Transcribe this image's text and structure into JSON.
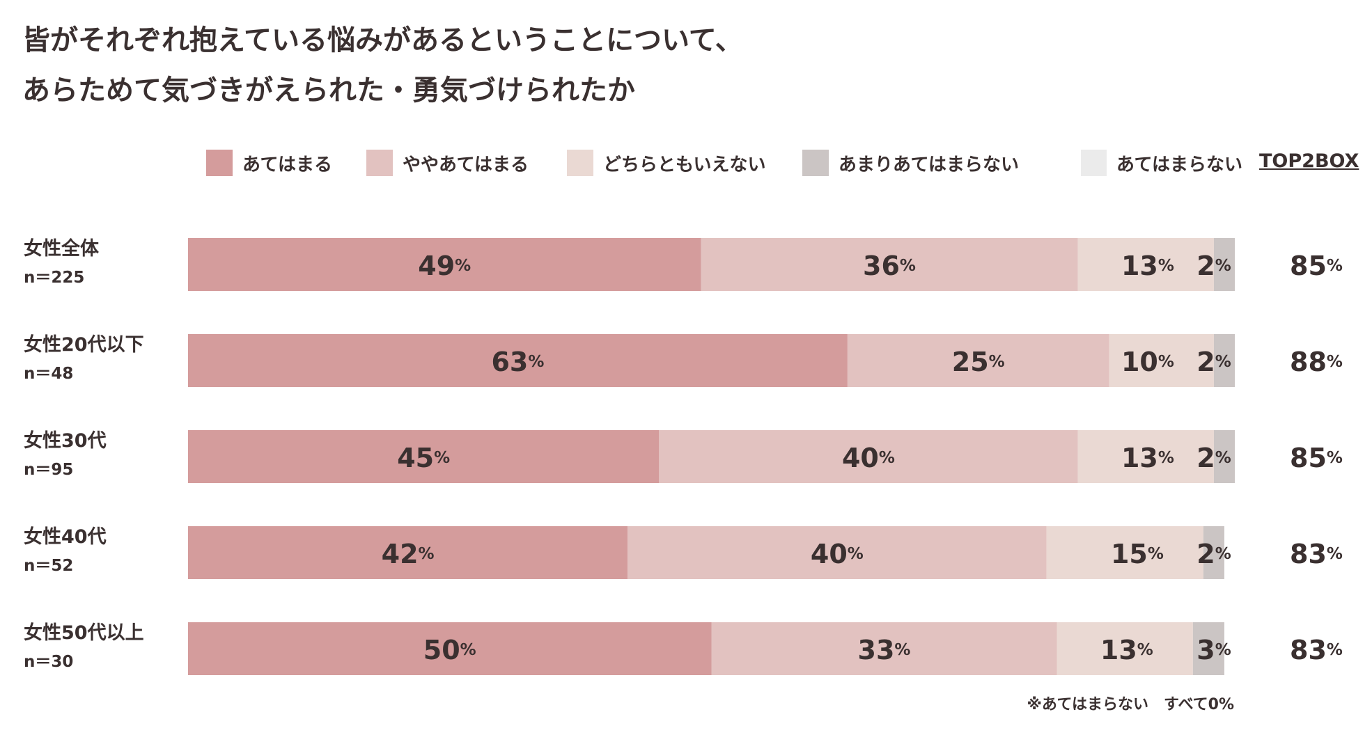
{
  "title": {
    "line1": "皆がそれぞれ抱えている悩みがあるということについて、",
    "line2": "あらためて気づきがえられた・勇気づけられたか"
  },
  "top2box_header": "TOP2BOX",
  "footnote": "※あてはまらない　すべて0%",
  "colors": {
    "あてはまる": "#d49c9c",
    "ややあてはまる": "#e2c2c0",
    "どちらともいえない": "#ead9d3",
    "あまりあてはまらない": "#cbc5c4",
    "あてはまらない": "#ebebeb",
    "text": "#3a3030"
  },
  "chart_data": {
    "type": "bar",
    "orientation": "horizontal",
    "stacked": true,
    "categories": [
      "女性全体",
      "女性20代以下",
      "女性30代",
      "女性40代",
      "女性50代以上"
    ],
    "sample_sizes": [
      "n＝225",
      "n＝48",
      "n＝95",
      "n＝52",
      "n＝30"
    ],
    "series": [
      {
        "name": "あてはまる",
        "values": [
          49,
          63,
          45,
          42,
          50
        ]
      },
      {
        "name": "ややあてはまる",
        "values": [
          36,
          25,
          40,
          40,
          33
        ]
      },
      {
        "name": "どちらともいえない",
        "values": [
          13,
          10,
          13,
          15,
          13
        ]
      },
      {
        "name": "あまりあてはまらない",
        "values": [
          2,
          2,
          2,
          2,
          3
        ]
      },
      {
        "name": "あてはまらない",
        "values": [
          0,
          0,
          0,
          0,
          0
        ]
      }
    ],
    "top2box": [
      85,
      88,
      85,
      83,
      83
    ],
    "unit": "%",
    "xlim": [
      0,
      100
    ],
    "legend": "top"
  }
}
